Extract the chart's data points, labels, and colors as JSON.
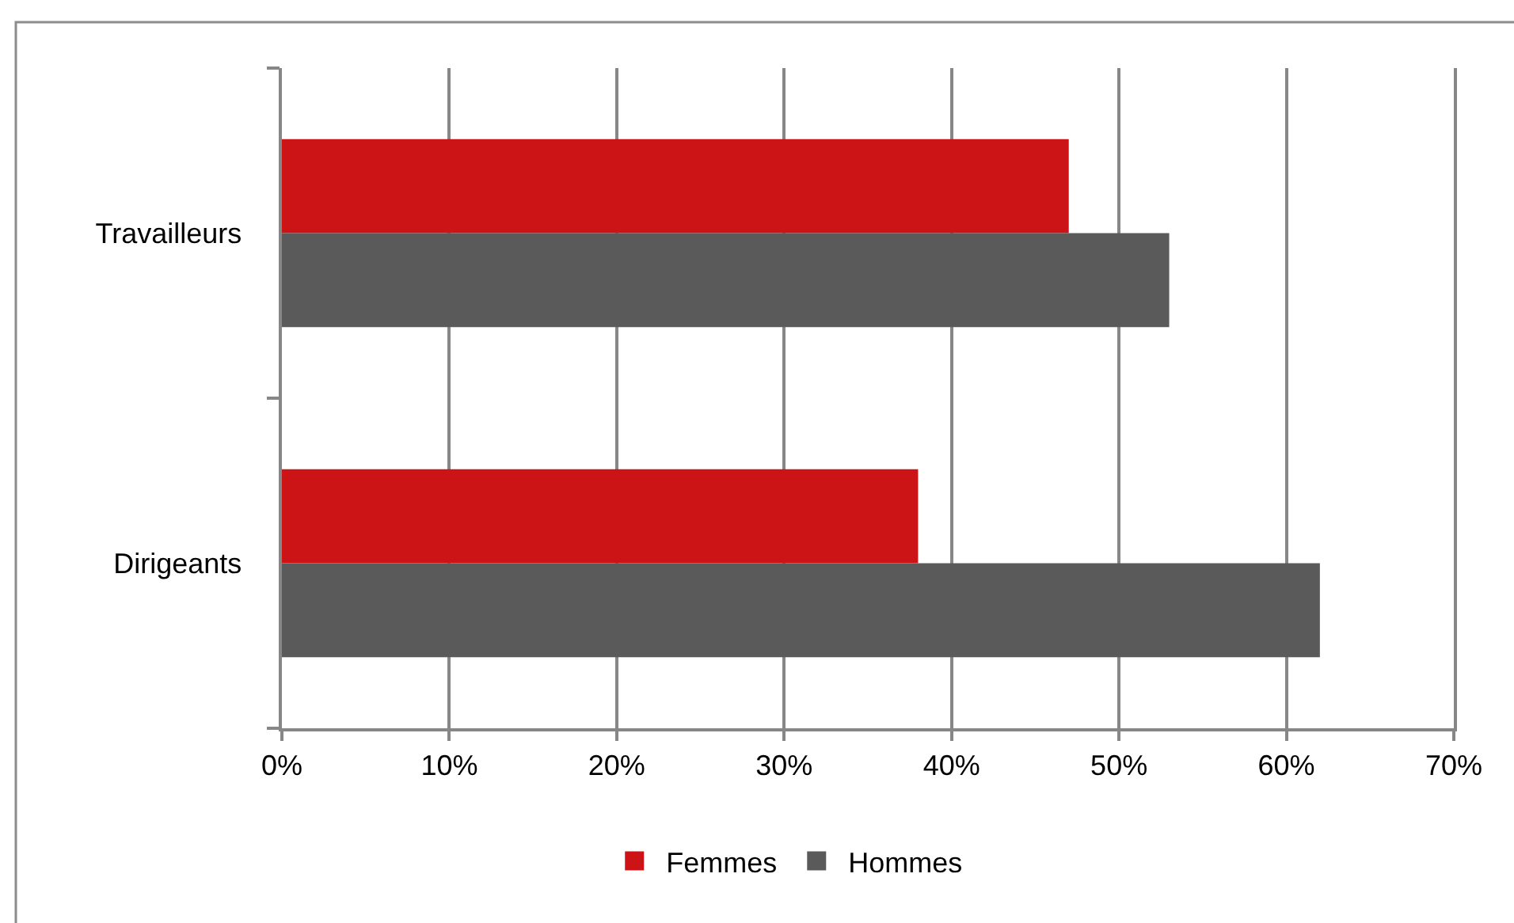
{
  "chart_data": {
    "type": "bar",
    "orientation": "horizontal",
    "categories": [
      "Travailleurs",
      "Dirigeants"
    ],
    "series": [
      {
        "name": "Femmes",
        "color": "#cc1416",
        "values": [
          47,
          38
        ]
      },
      {
        "name": "Hommes",
        "color": "#5a5a5a",
        "values": [
          53,
          62
        ]
      }
    ],
    "xlim": [
      0,
      70
    ],
    "xticks": [
      {
        "value": 0,
        "label": "0%"
      },
      {
        "value": 10,
        "label": "10%"
      },
      {
        "value": 20,
        "label": "20%"
      },
      {
        "value": 30,
        "label": "30%"
      },
      {
        "value": 40,
        "label": "40%"
      },
      {
        "value": 50,
        "label": "50%"
      },
      {
        "value": 60,
        "label": "60%"
      },
      {
        "value": 70,
        "label": "70%"
      }
    ],
    "grid": "x",
    "legend": "bottom"
  }
}
